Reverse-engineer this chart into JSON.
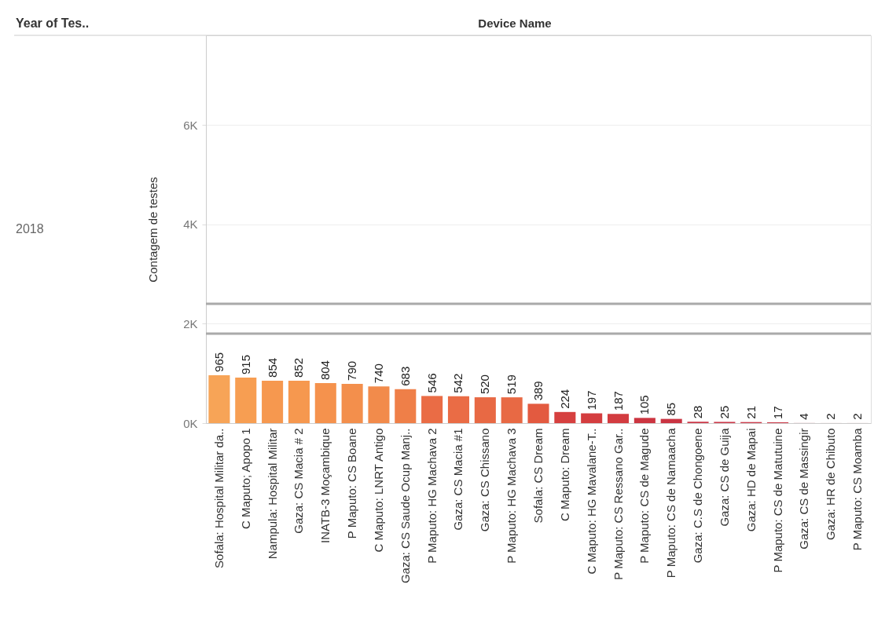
{
  "chart_data": {
    "type": "bar",
    "xlabel": "Device Name",
    "ylabel": "Contagem de testes",
    "annotations": [
      "Year of Tes..",
      "2018"
    ],
    "categories": [
      "Sofala: Hospital Militar da..",
      "C Maputo; Apopo 1",
      "Nampula: Hospital Militar",
      "Gaza: CS Macia # 2",
      "INATB-3 Moçambique",
      "P Maputo: CS Boane",
      "C Maputo: LNRT Antigo",
      "Gaza: CS Saude Ocup Manj..",
      "P Maputo: HG Machava 2",
      "Gaza: CS Macia #1",
      "Gaza: CS Chissano",
      "P Maputo: HG Machava 3",
      "Sofala: CS Dream",
      "C Maputo: Dream",
      "C Maputo: HG Mavalane-T..",
      "P Maputo: CS Ressano Gar..",
      "P Maputo: CS de Magude",
      "P Maputo: CS de Namaacha",
      "Gaza: C.S de Chongoene",
      "Gaza: CS de Guija",
      "Gaza: HD de Mapai",
      "P Maputo: CS de Matutuine",
      "Gaza: CS de Massingir",
      "Gaza: HR de Chibuto",
      "P Maputo: CS Moamba"
    ],
    "values": [
      965,
      915,
      854,
      852,
      804,
      790,
      740,
      683,
      546,
      542,
      520,
      519,
      389,
      224,
      197,
      187,
      105,
      85,
      28,
      25,
      21,
      17,
      4,
      2,
      2
    ],
    "colors": [
      "#f7a457",
      "#f79e52",
      "#f6984f",
      "#f6984f",
      "#f5924d",
      "#f38f4c",
      "#f28b4b",
      "#ef7f48",
      "#ea6c45",
      "#ea6c45",
      "#e86944",
      "#e86944",
      "#e35a40",
      "#d6403f",
      "#d43d3f",
      "#d33c40",
      "#cc3540",
      "#ca3442",
      "#cc3a4a",
      "#cc3a4a",
      "#cc3a4a",
      "#cc3a4a",
      "#d8a8b0",
      "#d8a8b0",
      "#d8a8b0"
    ],
    "data_labels": true,
    "ylim": [
      0,
      7800
    ],
    "yticks": [
      {
        "value": 0,
        "label": "0K"
      },
      {
        "value": 2000,
        "label": "2K"
      },
      {
        "value": 4000,
        "label": "4K"
      },
      {
        "value": 6000,
        "label": "6K"
      }
    ],
    "ref_lines": [
      {
        "axis": "y",
        "value": 2400,
        "color": "#aaaaaa"
      },
      {
        "axis": "y",
        "value": 1800,
        "color": "#aaaaaa"
      }
    ],
    "grid": "y"
  }
}
